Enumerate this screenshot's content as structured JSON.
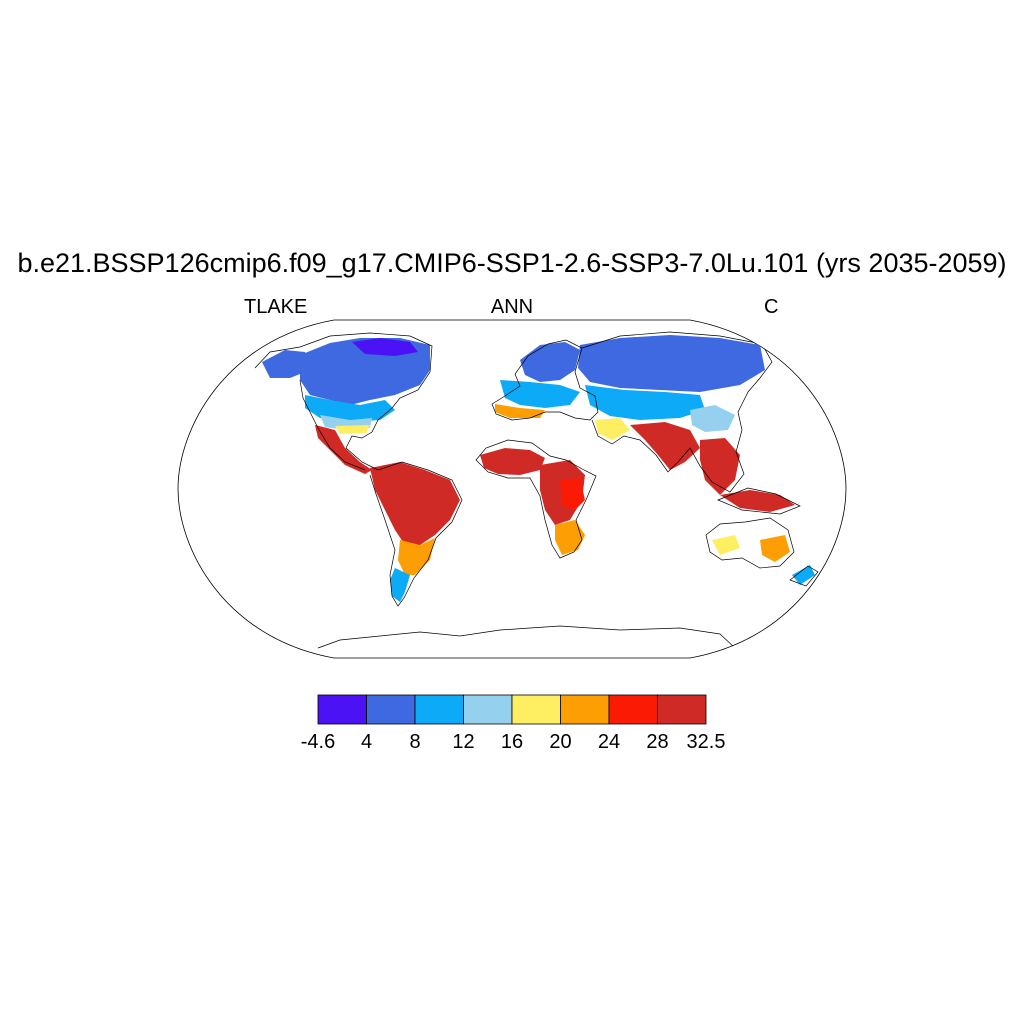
{
  "title": "b.e21.BSSP126cmip6.f09_g17.CMIP6-SSP1-2.6-SSP3-7.0Lu.101 (yrs 2035-2059)",
  "left_label": "TLAKE",
  "center_label": "ANN",
  "right_label": "C",
  "map": {
    "projection": "robinson",
    "variable": "TLAKE",
    "units": "C"
  },
  "colorbar": {
    "labels": [
      "-4.6",
      "4",
      "8",
      "12",
      "16",
      "20",
      "24",
      "28",
      "32.5"
    ],
    "colors": [
      "#4b12f5",
      "#3f69e0",
      "#0daaf7",
      "#96d0ef",
      "#fdee62",
      "#fd9e04",
      "#fb1a04",
      "#d02a26"
    ]
  }
}
